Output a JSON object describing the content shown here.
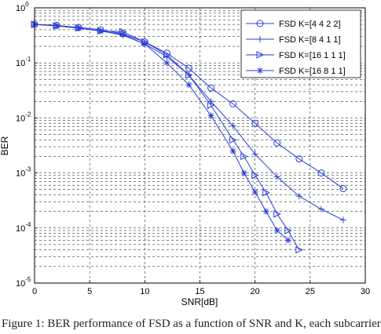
{
  "chart_data": {
    "type": "line",
    "xlabel": "SNR[dB]",
    "ylabel": "BER",
    "xlim": [
      0,
      30
    ],
    "ylim": [
      1e-05,
      1
    ],
    "y_scale": "log",
    "grid": true,
    "legend_position": "top-right",
    "x_ticks": [
      "0",
      "5",
      "10",
      "15",
      "20",
      "25",
      "30"
    ],
    "y_ticks": [
      {
        "value": 1,
        "base": "10",
        "exp": "0"
      },
      {
        "value": 0.1,
        "base": "10",
        "exp": "-1"
      },
      {
        "value": 0.01,
        "base": "10",
        "exp": "-2"
      },
      {
        "value": 0.001,
        "base": "10",
        "exp": "-3"
      },
      {
        "value": 0.0001,
        "base": "10",
        "exp": "-4"
      },
      {
        "value": 1e-05,
        "base": "10",
        "exp": "-5"
      }
    ],
    "series": [
      {
        "name": "FSD K=[4 4 2 2]",
        "marker": "circle",
        "x": [
          0,
          2,
          4,
          6,
          8,
          10,
          12,
          14,
          16,
          18,
          20,
          22,
          24,
          26,
          28
        ],
        "y": [
          0.5,
          0.48,
          0.44,
          0.4,
          0.34,
          0.24,
          0.15,
          0.08,
          0.035,
          0.018,
          0.008,
          0.0035,
          0.0018,
          0.001,
          0.00052
        ]
      },
      {
        "name": "FSD K=[8 4 1 1]",
        "marker": "plus",
        "x": [
          0,
          2,
          4,
          6,
          8,
          10,
          12,
          14,
          16,
          18,
          20,
          22,
          24,
          26,
          28
        ],
        "y": [
          0.5,
          0.47,
          0.43,
          0.38,
          0.32,
          0.22,
          0.13,
          0.06,
          0.02,
          0.0072,
          0.0022,
          0.00085,
          0.00038,
          0.00022,
          0.00014
        ]
      },
      {
        "name": "FSD K=[16 1 1 1]",
        "marker": "triangle-right",
        "x": [
          0,
          2,
          4,
          6,
          8,
          10,
          12,
          14,
          16,
          18,
          19,
          20,
          21,
          22,
          23,
          24
        ],
        "y": [
          0.5,
          0.47,
          0.43,
          0.38,
          0.37,
          0.24,
          0.14,
          0.06,
          0.017,
          0.004,
          0.002,
          0.00091,
          0.00044,
          0.00018,
          9e-05,
          4e-05
        ]
      },
      {
        "name": "FSD K=[16 8 1 1]",
        "marker": "star",
        "x": [
          0,
          2,
          4,
          6,
          8,
          10,
          12,
          14,
          16,
          18,
          19,
          20,
          21,
          22,
          23
        ],
        "y": [
          0.5,
          0.47,
          0.43,
          0.38,
          0.33,
          0.22,
          0.1,
          0.04,
          0.011,
          0.0025,
          0.001,
          0.00045,
          0.0002,
          9e-05,
          6e-05
        ]
      }
    ]
  },
  "colors": {
    "series": "#2b3fd6",
    "axes": "#000000",
    "grid": "#000000"
  },
  "caption": "Figure 1: BER performance of FSD as a function of SNR and K, each subcarrier"
}
